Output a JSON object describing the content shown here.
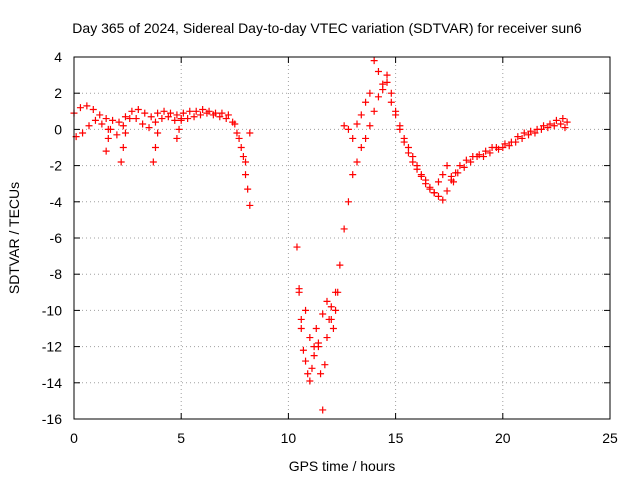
{
  "chart_data": {
    "type": "scatter",
    "title": "Day 365 of 2024, Sidereal Day-to-day VTEC variation (SDTVAR) for receiver sun6",
    "xlabel": "GPS time / hours",
    "ylabel": "SDTVAR / TECUs",
    "xlim": [
      0,
      25
    ],
    "ylim": [
      -16,
      4
    ],
    "x_ticks": [
      0,
      5,
      10,
      15,
      20,
      25
    ],
    "x_tick_labels": [
      "0",
      "5",
      "10",
      "15",
      "20",
      "25"
    ],
    "y_ticks": [
      -16,
      -14,
      -12,
      -10,
      -8,
      -6,
      -4,
      -2,
      0,
      2,
      4
    ],
    "y_tick_labels": [
      "-16",
      "-14",
      "-12",
      "-10",
      "-8",
      "-6",
      "-4",
      "-2",
      "0",
      "2",
      "4"
    ],
    "grid": true,
    "marker": "plus",
    "color": "#ff0000",
    "series": [
      {
        "name": "SDTVAR",
        "x": [
          0.0,
          0.3,
          0.6,
          0.9,
          1.2,
          1.5,
          1.8,
          2.1,
          2.4,
          2.7,
          3.0,
          3.3,
          3.6,
          3.9,
          4.2,
          4.5,
          4.8,
          5.1,
          5.4,
          5.7,
          6.0,
          6.3,
          6.6,
          6.9,
          7.2,
          7.5,
          7.7,
          7.9,
          8.0,
          8.1,
          8.2,
          0.1,
          0.4,
          0.7,
          1.0,
          1.3,
          1.6,
          2.0,
          2.3,
          2.6,
          2.9,
          3.2,
          3.5,
          3.8,
          4.1,
          4.4,
          4.7,
          5.0,
          5.3,
          5.6,
          5.9,
          6.2,
          6.5,
          6.8,
          7.1,
          7.4,
          7.6,
          7.8,
          8.0,
          8.2,
          1.5,
          1.6,
          1.7,
          2.2,
          2.3,
          2.4,
          3.7,
          3.8,
          3.9,
          4.8,
          4.9,
          5.0,
          10.4,
          10.5,
          10.6,
          10.7,
          10.8,
          10.9,
          11.0,
          11.1,
          11.2,
          11.3,
          11.4,
          11.5,
          11.6,
          11.7,
          11.8,
          11.9,
          12.0,
          12.1,
          12.2,
          12.3,
          10.5,
          10.6,
          10.8,
          11.0,
          11.2,
          11.4,
          11.6,
          11.8,
          12.0,
          12.2,
          12.4,
          12.6,
          12.8,
          13.0,
          13.2,
          13.4,
          13.6,
          13.8,
          14.0,
          14.2,
          14.4,
          14.6,
          14.8,
          15.0,
          15.2,
          15.4,
          15.6,
          15.8,
          16.0,
          16.2,
          16.4,
          16.6,
          16.8,
          17.0,
          17.2,
          17.4,
          17.6,
          12.6,
          12.8,
          13.0,
          13.2,
          13.4,
          13.6,
          13.8,
          14.0,
          14.2,
          14.4,
          14.6,
          14.8,
          15.0,
          15.2,
          15.4,
          15.6,
          15.8,
          16.0,
          16.2,
          16.4,
          16.6,
          16.8,
          17.0,
          17.2,
          17.4,
          17.6,
          17.8,
          18.0,
          18.3,
          18.6,
          18.9,
          19.2,
          19.5,
          19.8,
          20.1,
          20.4,
          20.7,
          21.0,
          21.3,
          21.6,
          21.9,
          22.2,
          22.5,
          22.8,
          23.0,
          17.7,
          17.9,
          18.2,
          18.5,
          18.8,
          19.1,
          19.4,
          19.7,
          20.0,
          20.3,
          20.6,
          20.9,
          21.2,
          21.5,
          21.8,
          22.1,
          22.4,
          22.7,
          22.9
        ],
        "y": [
          0.9,
          1.2,
          1.3,
          1.1,
          0.8,
          0.6,
          0.5,
          0.4,
          0.7,
          1.0,
          1.1,
          0.9,
          0.7,
          0.9,
          1.0,
          0.9,
          0.8,
          0.9,
          1.0,
          1.0,
          1.1,
          1.0,
          0.9,
          0.9,
          0.8,
          0.3,
          -0.5,
          -1.5,
          -2.5,
          -3.3,
          -4.2,
          -0.4,
          -0.2,
          0.2,
          0.5,
          0.3,
          0.0,
          -0.3,
          0.2,
          0.6,
          0.6,
          0.3,
          0.1,
          0.4,
          0.6,
          0.7,
          0.5,
          0.5,
          0.6,
          0.7,
          0.8,
          0.9,
          0.8,
          0.7,
          0.6,
          0.4,
          -0.2,
          -1.0,
          -1.8,
          -0.2,
          -1.2,
          -0.5,
          0.0,
          -1.8,
          -1.0,
          -0.2,
          -1.8,
          -1.0,
          -0.2,
          -0.5,
          0.0,
          0.6,
          -6.5,
          -8.8,
          -11.0,
          -12.2,
          -12.8,
          -13.5,
          -13.9,
          -13.2,
          -12.0,
          -11.0,
          -11.8,
          -13.5,
          -15.5,
          -13.0,
          -11.5,
          -10.5,
          -9.8,
          -11.0,
          -10.0,
          -9.0,
          -9.0,
          -10.5,
          -10.0,
          -11.5,
          -12.5,
          -12.0,
          -10.2,
          -9.5,
          -10.5,
          -9.0,
          -7.5,
          -5.5,
          -4.0,
          -2.5,
          -1.8,
          -1.0,
          -0.5,
          0.2,
          1.0,
          1.8,
          2.2,
          2.6,
          2.0,
          1.0,
          0.0,
          -0.7,
          -1.3,
          -1.8,
          -2.2,
          -2.6,
          -3.0,
          -3.3,
          -3.5,
          -3.7,
          -3.9,
          -3.4,
          -2.8,
          0.2,
          0.0,
          -0.5,
          0.3,
          0.8,
          1.5,
          2.0,
          3.8,
          3.2,
          2.5,
          3.0,
          1.5,
          0.8,
          0.2,
          -0.5,
          -1.0,
          -1.5,
          -2.0,
          -2.5,
          -2.8,
          -3.2,
          -3.5,
          -2.9,
          -2.5,
          -2.0,
          -2.6,
          -2.4,
          -2.0,
          -1.7,
          -1.5,
          -1.4,
          -1.2,
          -1.0,
          -1.1,
          -0.8,
          -0.7,
          -0.4,
          -0.2,
          -0.1,
          0.0,
          0.2,
          0.3,
          0.5,
          0.6,
          0.4,
          -2.9,
          -2.4,
          -2.1,
          -1.8,
          -1.5,
          -1.5,
          -1.3,
          -1.0,
          -1.0,
          -0.9,
          -0.7,
          -0.5,
          -0.3,
          -0.2,
          0.0,
          0.1,
          0.2,
          0.3,
          0.1
        ]
      }
    ]
  }
}
